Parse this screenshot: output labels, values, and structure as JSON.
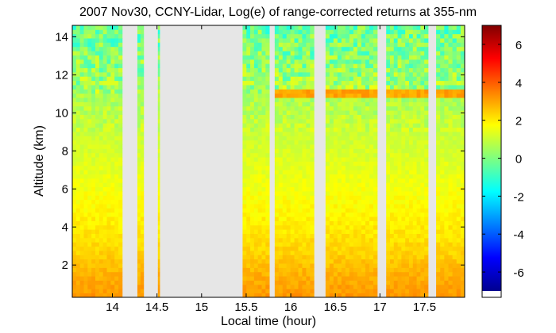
{
  "chart_data": {
    "type": "heatmap",
    "title": "2007 Nov30, CCNY-Lidar, Log(e) of range-corrected returns at 355-nm",
    "xlabel": "Local time (hour)",
    "ylabel": "Altitude (km)",
    "xlim": [
      13.55,
      17.95
    ],
    "ylim": [
      0.3,
      14.6
    ],
    "x_ticks": [
      14,
      14.5,
      15,
      15.5,
      16,
      16.5,
      17,
      17.5
    ],
    "x_tick_labels": [
      "14",
      "14.5",
      "15",
      "15.5",
      "16",
      "16.5",
      "17",
      "17.5"
    ],
    "y_ticks": [
      2,
      4,
      6,
      8,
      10,
      12,
      14
    ],
    "y_tick_labels": [
      "2",
      "4",
      "6",
      "8",
      "10",
      "12",
      "14"
    ],
    "colorbar": {
      "colormap": "jet",
      "range": [
        -7,
        7
      ],
      "ticks": [
        -6,
        -4,
        -2,
        0,
        2,
        4,
        6
      ],
      "tick_labels": [
        "-6",
        "-4",
        "-2",
        "0",
        "2",
        "4",
        "6"
      ]
    },
    "data_segments": [
      {
        "start": 13.55,
        "end": 14.11
      },
      {
        "start": 14.28,
        "end": 14.35
      },
      {
        "start": 14.51,
        "end": 14.53
      },
      {
        "start": 15.46,
        "end": 15.76
      },
      {
        "start": 15.82,
        "end": 16.26
      },
      {
        "start": 16.39,
        "end": 16.97
      },
      {
        "start": 17.07,
        "end": 17.54
      },
      {
        "start": 17.63,
        "end": 17.95
      }
    ],
    "profile": [
      {
        "altitude": 0.3,
        "value": 3.2
      },
      {
        "altitude": 0.9,
        "value": 3.0
      },
      {
        "altitude": 1.6,
        "value": 2.8
      },
      {
        "altitude": 2.5,
        "value": 2.4
      },
      {
        "altitude": 4.0,
        "value": 2.0
      },
      {
        "altitude": 6.0,
        "value": 1.6
      },
      {
        "altitude": 8.0,
        "value": 1.2
      },
      {
        "altitude": 10.0,
        "value": 0.8
      },
      {
        "altitude": 12.0,
        "value": 0.3
      },
      {
        "altitude": 14.6,
        "value": -0.3
      }
    ],
    "cloud_layer": {
      "altitude": 11.0,
      "start": 15.8,
      "end": 17.95,
      "value": 3.0
    },
    "no_data_color": "#e6e6e6"
  }
}
